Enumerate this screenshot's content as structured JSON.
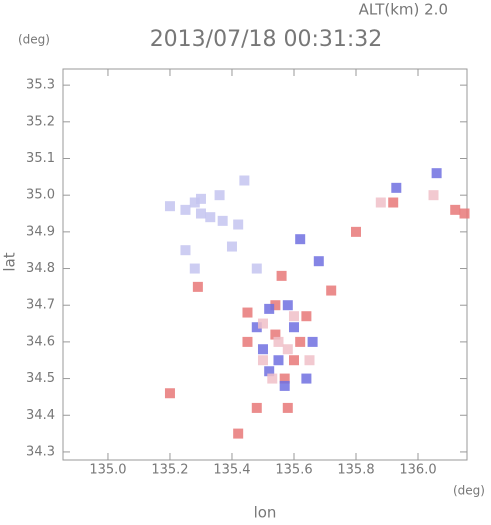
{
  "chart_data": {
    "type": "scatter",
    "title": "2013/07/18 00:31:32",
    "header": "ALT(km) 2.0",
    "y_unit": "(deg)",
    "x_unit": "(deg)",
    "x_label": "lon",
    "y_label": "lat",
    "xlim": [
      134.855,
      136.158
    ],
    "ylim": [
      34.278,
      35.344
    ],
    "xticks": [
      {
        "value": 135.0,
        "label": "135.0"
      },
      {
        "value": 135.2,
        "label": "135.2"
      },
      {
        "value": 135.4,
        "label": "135.4"
      },
      {
        "value": 135.6,
        "label": "135.6"
      },
      {
        "value": 135.8,
        "label": "135.8"
      },
      {
        "value": 136.0,
        "label": "136.0"
      }
    ],
    "yticks": [
      34.3,
      34.4,
      34.5,
      34.6,
      34.7,
      34.8,
      34.9,
      {
        "value": 35.0,
        "label": "35.0"
      },
      35.1,
      35.2,
      35.3
    ],
    "series": [
      {
        "color": "#c4c4f0",
        "x": [
          135.2,
          135.25,
          135.28,
          135.3,
          135.33,
          135.3,
          135.36,
          135.37,
          135.42,
          135.44,
          135.28,
          135.25,
          135.4,
          135.48
        ],
        "y": [
          34.97,
          34.96,
          34.98,
          34.95,
          34.94,
          34.99,
          35.0,
          34.93,
          34.92,
          35.04,
          34.8,
          34.85,
          34.86,
          34.8
        ]
      },
      {
        "color": "#e87878",
        "x": [
          135.56,
          135.64,
          135.45,
          135.6,
          135.57,
          135.54,
          135.45,
          135.48,
          135.58,
          135.42,
          135.72,
          135.8,
          135.92,
          136.12,
          136.15,
          135.54,
          135.62,
          135.2,
          135.29
        ],
        "y": [
          34.78,
          34.67,
          34.68,
          34.55,
          34.5,
          34.62,
          34.6,
          34.42,
          34.42,
          34.35,
          34.74,
          34.9,
          34.98,
          34.96,
          34.95,
          34.7,
          34.6,
          34.46,
          34.75
        ]
      },
      {
        "color": "#7070e0",
        "x": [
          135.52,
          135.6,
          135.5,
          135.64,
          135.55,
          135.66,
          135.57,
          135.52,
          135.68,
          135.62,
          135.93,
          136.06,
          135.48,
          135.58
        ],
        "y": [
          34.69,
          34.64,
          34.58,
          34.5,
          34.55,
          34.6,
          34.48,
          34.52,
          34.82,
          34.88,
          35.02,
          35.06,
          34.64,
          34.7
        ]
      },
      {
        "color": "#f0c0c8",
        "x": [
          135.5,
          135.55,
          135.53,
          135.6,
          135.58,
          135.5,
          135.65,
          135.88,
          136.05
        ],
        "y": [
          34.65,
          34.6,
          34.5,
          34.67,
          34.58,
          34.55,
          34.55,
          34.98,
          35.0
        ]
      }
    ]
  }
}
